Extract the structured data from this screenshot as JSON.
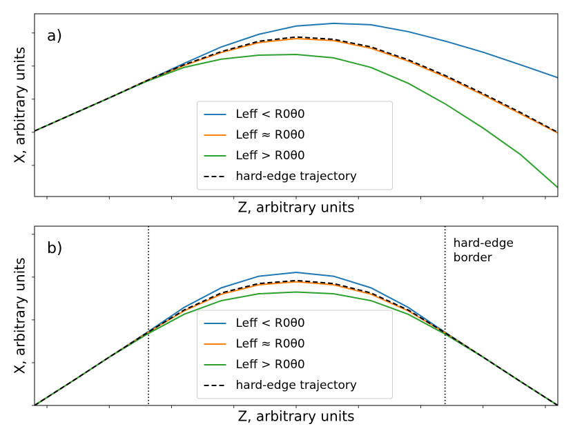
{
  "chart_data": [
    {
      "type": "line",
      "label": "a)",
      "xlabel": "Z, arbitrary units",
      "ylabel": "X, arbitrary units",
      "x": [
        0,
        0.6,
        1.2,
        1.8,
        2.4,
        3.0,
        3.6,
        4.2,
        4.8,
        5.4,
        6.0,
        6.6,
        7.2,
        7.8,
        8.4
      ],
      "xlim": [
        0,
        8.4
      ],
      "xticks": [
        0.2,
        1.2,
        2.2,
        3.2,
        4.2,
        5.2,
        6.2,
        7.2,
        8.2
      ],
      "ylim": [
        -0.94,
        4.58
      ],
      "yticks": [
        0,
        1,
        2,
        3,
        4
      ],
      "legend": "lower center",
      "series": [
        {
          "name": "Leff < R0θ0",
          "color": "#1f77b4",
          "dash": "solid",
          "values": [
            1.04,
            1.54,
            2.04,
            2.56,
            3.08,
            3.58,
            3.96,
            4.21,
            4.29,
            4.25,
            4.04,
            3.75,
            3.42,
            3.04,
            2.65
          ]
        },
        {
          "name": "Leff ≈ R0θ0",
          "color": "#ff7f0e",
          "dash": "solid",
          "values": [
            1.04,
            1.54,
            2.04,
            2.56,
            3.02,
            3.41,
            3.71,
            3.83,
            3.77,
            3.54,
            3.15,
            2.67,
            2.13,
            1.56,
            0.98
          ]
        },
        {
          "name": "Leff > R0θ0",
          "color": "#2ca02c",
          "dash": "solid",
          "values": [
            1.04,
            1.54,
            2.04,
            2.54,
            2.96,
            3.21,
            3.33,
            3.35,
            3.25,
            2.96,
            2.48,
            1.85,
            1.13,
            0.33,
            -0.67
          ]
        },
        {
          "name": "hard-edge trajectory",
          "color": "#000000",
          "dash": "dashed",
          "values": [
            1.04,
            1.54,
            2.04,
            2.56,
            3.04,
            3.44,
            3.75,
            3.88,
            3.81,
            3.58,
            3.19,
            2.71,
            2.17,
            1.6,
            1.0
          ]
        }
      ]
    },
    {
      "type": "line",
      "label": "b)",
      "xlabel": "Z, arbitrary units",
      "ylabel": "X, arbitrary units",
      "x": [
        0,
        0.6,
        1.2,
        1.8,
        2.4,
        3.0,
        3.6,
        4.2,
        4.8,
        5.4,
        6.0,
        6.6,
        7.2,
        7.8,
        8.4
      ],
      "xlim": [
        0,
        8.4
      ],
      "xticks": [
        0.2,
        1.2,
        2.2,
        3.2,
        4.2,
        5.2,
        6.2,
        7.2,
        8.2
      ],
      "ylim": [
        0,
        4.19
      ],
      "yticks": [
        0,
        1,
        2,
        3,
        4
      ],
      "legend": "lower center",
      "vlines": [
        1.83,
        6.59
      ],
      "annotation": [
        "hard-edge",
        "border"
      ],
      "series": [
        {
          "name": "Leff < R0θ0",
          "color": "#1f77b4",
          "dash": "solid",
          "values": [
            0,
            0.56,
            1.13,
            1.7,
            2.29,
            2.75,
            3.02,
            3.11,
            3.02,
            2.75,
            2.29,
            1.7,
            1.13,
            0.56,
            0
          ]
        },
        {
          "name": "Leff ≈ R0θ0",
          "color": "#ff7f0e",
          "dash": "solid",
          "values": [
            0,
            0.56,
            1.13,
            1.69,
            2.21,
            2.6,
            2.82,
            2.89,
            2.82,
            2.6,
            2.21,
            1.69,
            1.13,
            0.56,
            0
          ]
        },
        {
          "name": "Leff > R0θ0",
          "color": "#2ca02c",
          "dash": "solid",
          "values": [
            0,
            0.56,
            1.13,
            1.66,
            2.13,
            2.45,
            2.61,
            2.65,
            2.61,
            2.45,
            2.13,
            1.66,
            1.13,
            0.56,
            0
          ]
        },
        {
          "name": "hard-edge trajectory",
          "color": "#000000",
          "dash": "dashed",
          "values": [
            0,
            0.56,
            1.13,
            1.69,
            2.23,
            2.63,
            2.85,
            2.92,
            2.85,
            2.63,
            2.23,
            1.69,
            1.13,
            0.56,
            0
          ]
        }
      ]
    }
  ]
}
